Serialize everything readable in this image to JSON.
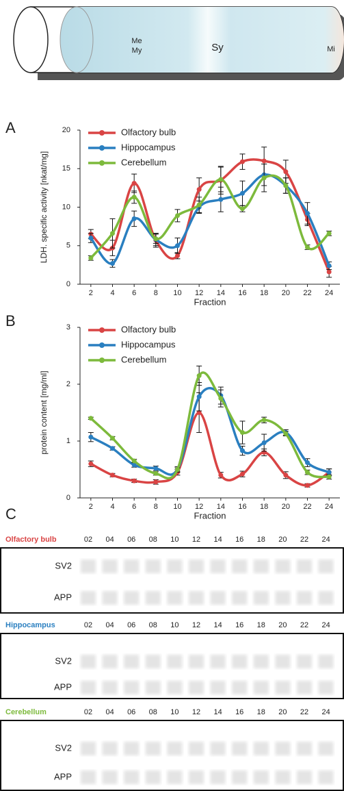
{
  "tube": {
    "labels": [
      "Me",
      "My",
      "Sy",
      "Mi"
    ]
  },
  "chart_data": [
    {
      "type": "line",
      "panel": "A",
      "ylabel": "LDH. specific activity [nkat/mg]",
      "xlabel": "Fraction",
      "x": [
        2,
        4,
        6,
        8,
        10,
        12,
        14,
        16,
        18,
        20,
        22,
        24
      ],
      "xlim": [
        1,
        25
      ],
      "xticks": [
        2,
        4,
        6,
        8,
        10,
        12,
        14,
        16,
        18,
        20,
        22,
        24
      ],
      "ylim": [
        0,
        20
      ],
      "yticks": [
        0,
        5,
        10,
        15,
        20
      ],
      "legend": "upper left",
      "series": [
        {
          "name": "Olfactory bulb",
          "color": "#d94444",
          "values": [
            6.5,
            4.7,
            13.1,
            5.7,
            3.7,
            12.3,
            13.5,
            15.9,
            16,
            14.6,
            8.4,
            1.6
          ],
          "errors": [
            0.6,
            1,
            1.2,
            0.9,
            0.4,
            1.5,
            1.8,
            1,
            1.8,
            1.5,
            0.8,
            0.7
          ]
        },
        {
          "name": "Hippocampus",
          "color": "#2a7fc0",
          "values": [
            6,
            2.7,
            8.5,
            5.8,
            5,
            10,
            11,
            11.8,
            14.2,
            12.8,
            9.2,
            2.4
          ],
          "errors": [
            0.6,
            0.5,
            1,
            0.8,
            1,
            0.8,
            1.6,
            1.6,
            1.4,
            1,
            1.4,
            0.5
          ]
        },
        {
          "name": "Cerebellum",
          "color": "#7dba3c",
          "values": [
            3.4,
            6.6,
            11.3,
            5.9,
            8.9,
            10.3,
            13.6,
            9.8,
            13.8,
            12.8,
            4.8,
            6.6
          ],
          "errors": [
            0.3,
            1.9,
            0.8,
            0.6,
            0.8,
            1,
            1.6,
            0.4,
            1.8,
            1,
            0.3,
            0.3
          ]
        }
      ]
    },
    {
      "type": "line",
      "panel": "B",
      "ylabel": "protein content [mg/ml]",
      "xlabel": "Fraction",
      "x": [
        2,
        4,
        6,
        8,
        10,
        12,
        14,
        16,
        18,
        20,
        22,
        24
      ],
      "xlim": [
        1,
        25
      ],
      "xticks": [
        2,
        4,
        6,
        8,
        10,
        12,
        14,
        16,
        18,
        20,
        22,
        24
      ],
      "ylim": [
        0,
        3
      ],
      "yticks": [
        0,
        1,
        2,
        3
      ],
      "legend": "upper left",
      "series": [
        {
          "name": "Olfactory bulb",
          "color": "#d94444",
          "values": [
            0.6,
            0.4,
            0.3,
            0.28,
            0.45,
            1.5,
            0.4,
            0.42,
            0.8,
            0.4,
            0.22,
            0.45
          ],
          "errors": [
            0.05,
            0.03,
            0.03,
            0.04,
            0.05,
            0.35,
            0.05,
            0.05,
            0.06,
            0.06,
            0.03,
            0.06
          ]
        },
        {
          "name": "Hippocampus",
          "color": "#2a7fc0",
          "values": [
            1.07,
            0.87,
            0.58,
            0.52,
            0.5,
            1.78,
            1.8,
            0.83,
            0.97,
            1.15,
            0.62,
            0.45
          ],
          "errors": [
            0.08,
            0.03,
            0.04,
            0.04,
            0.05,
            0.25,
            0.15,
            0.08,
            0.15,
            0.05,
            0.07,
            0.06
          ]
        },
        {
          "name": "Cerebellum",
          "color": "#7dba3c",
          "values": [
            1.4,
            1.05,
            0.65,
            0.43,
            0.5,
            2.15,
            1.75,
            1.15,
            1.37,
            1.13,
            0.45,
            0.37
          ],
          "errors": [
            0.02,
            0.03,
            0.03,
            0.03,
            0.03,
            0.17,
            0.15,
            0.2,
            0.05,
            0.04,
            0.04,
            0.04
          ]
        }
      ]
    }
  ],
  "blot": {
    "panel": "C",
    "lanes": [
      "02",
      "04",
      "06",
      "08",
      "10",
      "12",
      "14",
      "16",
      "18",
      "20",
      "22",
      "24"
    ],
    "sections": [
      {
        "tissue": "Olfactory bulb",
        "color": "#d94444",
        "rows": [
          "SV2",
          "APP"
        ]
      },
      {
        "tissue": "Hippocampus",
        "color": "#2a7fc0",
        "rows": [
          "SV2",
          "APP"
        ]
      },
      {
        "tissue": "Cerebellum",
        "color": "#7dba3c",
        "rows": [
          "SV2",
          "APP"
        ]
      }
    ]
  }
}
